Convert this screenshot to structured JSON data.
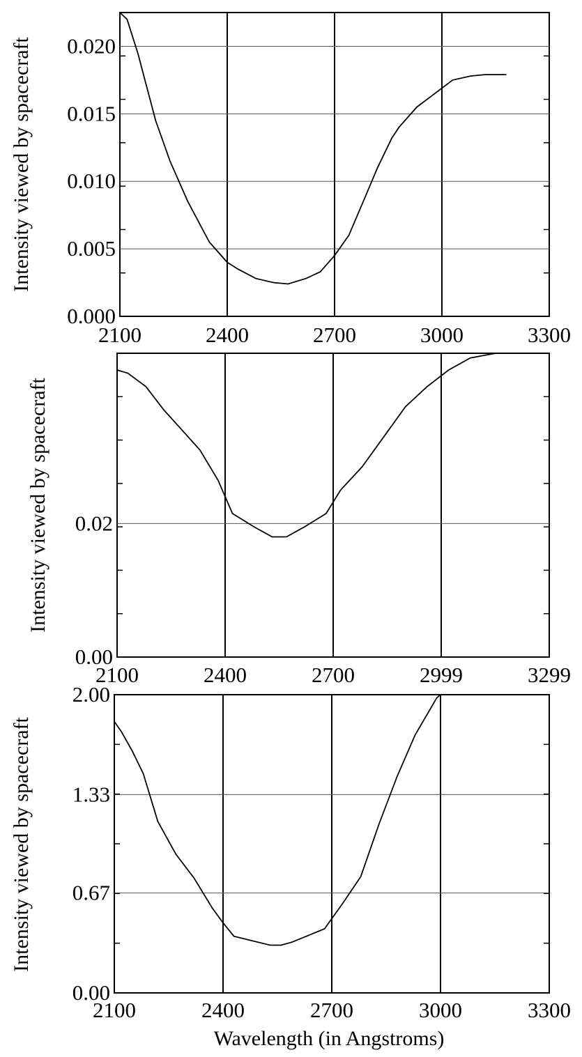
{
  "chart_data": [
    {
      "type": "line",
      "xlabel": "",
      "ylabel": "Intensity viewed by spacecraft",
      "xlim": [
        2100,
        3300
      ],
      "ylim": [
        0.0,
        0.0225
      ],
      "x_ticks": [
        "2100",
        "2400",
        "2700",
        "3000",
        "3300"
      ],
      "y_ticks": [
        {
          "value": 0.0,
          "label": "0.000"
        },
        {
          "value": 0.005,
          "label": "0.005"
        },
        {
          "value": 0.01,
          "label": "0.010"
        },
        {
          "value": 0.015,
          "label": "0.015"
        },
        {
          "value": 0.02,
          "label": "0.020"
        }
      ],
      "grid": true,
      "series": [
        {
          "x": [
            2100,
            2120,
            2150,
            2200,
            2240,
            2290,
            2350,
            2400,
            2430,
            2480,
            2530,
            2570,
            2620,
            2660,
            2700,
            2740,
            2780,
            2820,
            2860,
            2880,
            2930,
            2980,
            3030,
            3080,
            3120,
            3180
          ],
          "y": [
            0.0225,
            0.022,
            0.0195,
            0.0145,
            0.0115,
            0.0085,
            0.0055,
            0.004,
            0.0035,
            0.0028,
            0.0025,
            0.0024,
            0.0028,
            0.0033,
            0.0045,
            0.006,
            0.0085,
            0.011,
            0.0132,
            0.014,
            0.0155,
            0.0165,
            0.0175,
            0.0178,
            0.0179,
            0.0179
          ]
        }
      ]
    },
    {
      "type": "line",
      "xlabel": "",
      "ylabel": "Intensity viewed by spacecraft",
      "xlim": [
        2100,
        3299
      ],
      "ylim": [
        0.0,
        0.0455
      ],
      "x_ticks": [
        "2100",
        "2400",
        "2700",
        "2999",
        "3299"
      ],
      "y_ticks": [
        {
          "value": 0.0,
          "label": "0.00"
        },
        {
          "value": 0.02,
          "label": "0.02"
        }
      ],
      "grid": true,
      "series": [
        {
          "x": [
            2100,
            2130,
            2180,
            2230,
            2280,
            2330,
            2380,
            2420,
            2480,
            2530,
            2570,
            2620,
            2680,
            2720,
            2780,
            2840,
            2900,
            2960,
            3020,
            3080,
            3150,
            3210,
            3299
          ],
          "y": [
            0.043,
            0.0425,
            0.0405,
            0.037,
            0.034,
            0.031,
            0.0265,
            0.0215,
            0.0195,
            0.018,
            0.018,
            0.0195,
            0.0215,
            0.025,
            0.0285,
            0.033,
            0.0375,
            0.0405,
            0.043,
            0.0448,
            0.0455,
            0.0455,
            0.0455
          ]
        }
      ]
    },
    {
      "type": "line",
      "xlabel": "Wavelength (in Angstroms)",
      "ylabel": "Intensity viewed by spacecraft",
      "xlim": [
        2100,
        3300
      ],
      "ylim": [
        0.0,
        2.0
      ],
      "x_ticks": [
        "2100",
        "2400",
        "2700",
        "3000",
        "3300"
      ],
      "y_ticks": [
        {
          "value": 0.0,
          "label": "0.00"
        },
        {
          "value": 0.67,
          "label": "0.67"
        },
        {
          "value": 1.33,
          "label": "1.33"
        },
        {
          "value": 2.0,
          "label": "2.00"
        }
      ],
      "grid": true,
      "series": [
        {
          "x": [
            2100,
            2120,
            2150,
            2180,
            2220,
            2270,
            2320,
            2370,
            2400,
            2430,
            2480,
            2530,
            2560,
            2590,
            2630,
            2680,
            2730,
            2780,
            2830,
            2880,
            2930,
            2990,
            3000
          ],
          "y": [
            1.82,
            1.75,
            1.62,
            1.47,
            1.15,
            0.93,
            0.77,
            0.57,
            0.47,
            0.38,
            0.35,
            0.32,
            0.32,
            0.34,
            0.38,
            0.43,
            0.6,
            0.78,
            1.13,
            1.45,
            1.73,
            1.98,
            2.0
          ]
        }
      ]
    }
  ]
}
